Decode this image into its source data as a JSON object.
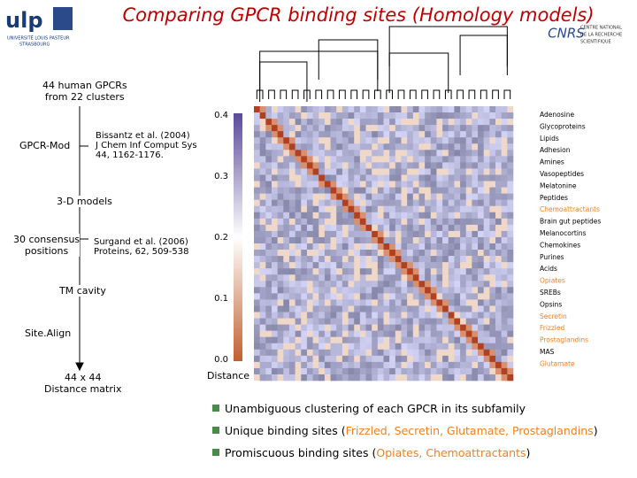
{
  "header": {
    "title": "Comparing GPCR binding sites (Homology models)",
    "left_logo": {
      "mark": "ulp",
      "lines": [
        "UNIVERSITÉ LOUIS PASTEUR",
        "STRASBOURG"
      ]
    },
    "right_logo": {
      "mark": "CNRS",
      "lines": [
        "CENTRE NATIONAL",
        "DE LA RECHERCHE",
        "SCIENTIFIQUE"
      ]
    }
  },
  "workflow": {
    "input": "44 human GPCRs\nfrom 22 clusters",
    "method1": "GPCR-Mod",
    "ref1": "Bissantz et al. (2004)\nJ Chem Inf Comput Sys\n44, 1162-1176.",
    "step1": "3-D models",
    "step2": "30 consensus\npositions",
    "ref2": "Surgand et al. (2006)\nProteins, 62, 509-538",
    "step3": "TM cavity",
    "method2": "Site.Align",
    "output": "44 x 44\nDistance matrix"
  },
  "matrix": {
    "scale_labels": [
      "0.4",
      "0.3",
      "0.2",
      "0.1",
      "0.0"
    ],
    "scale_title": "Distance",
    "families": [
      {
        "name": "Adenosine",
        "highlight": false
      },
      {
        "name": "Glycoproteins",
        "highlight": false
      },
      {
        "name": "Lipids",
        "highlight": false
      },
      {
        "name": "Adhesion",
        "highlight": false
      },
      {
        "name": "Amines",
        "highlight": false
      },
      {
        "name": "Vasopeptides",
        "highlight": false
      },
      {
        "name": "Melatonine",
        "highlight": false
      },
      {
        "name": "Peptides",
        "highlight": false
      },
      {
        "name": "Chemoattractants",
        "highlight": true
      },
      {
        "name": "Brain gut peptides",
        "highlight": false
      },
      {
        "name": "Melanocortins",
        "highlight": false
      },
      {
        "name": "Chemokines",
        "highlight": false
      },
      {
        "name": "Purines",
        "highlight": false
      },
      {
        "name": "Acids",
        "highlight": false
      },
      {
        "name": "Opiates",
        "highlight": true
      },
      {
        "name": "SREBs",
        "highlight": false
      },
      {
        "name": "Opsins",
        "highlight": false
      },
      {
        "name": "Secretin",
        "highlight": true
      },
      {
        "name": "Frizzled",
        "highlight": true
      },
      {
        "name": "Prostaglandins",
        "highlight": true
      },
      {
        "name": "MAS",
        "highlight": false
      },
      {
        "name": "Glutamate",
        "highlight": true
      }
    ]
  },
  "bullets": [
    [
      {
        "text": "Unambiguous clustering of each GPCR in its subfamily",
        "highlight": false
      }
    ],
    [
      {
        "text": "Unique binding sites (",
        "highlight": false
      },
      {
        "text": "Frizzled, Secretin, Glutamate, Prostaglandins",
        "highlight": true
      },
      {
        "text": ")",
        "highlight": false
      }
    ],
    [
      {
        "text": "Promiscuous binding sites (",
        "highlight": false
      },
      {
        "text": "Opiates, Chemoattractants",
        "highlight": true
      },
      {
        "text": ")",
        "highlight": false
      }
    ]
  ]
}
